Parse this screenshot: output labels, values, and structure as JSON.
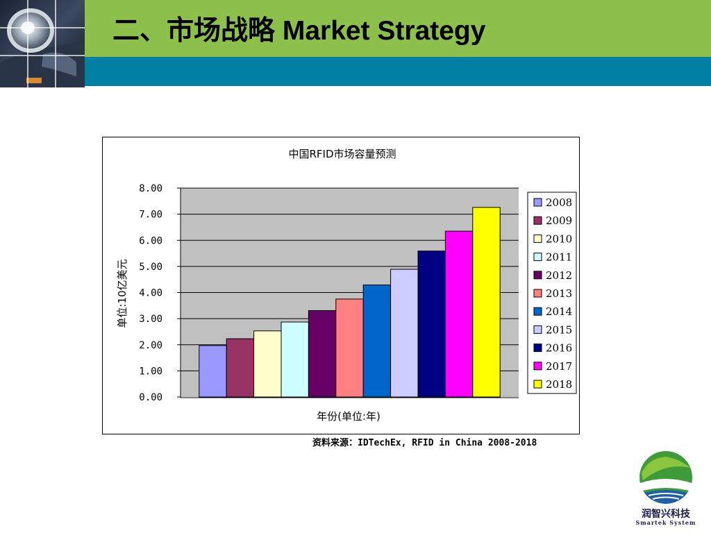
{
  "slide": {
    "title": "二、市场战略 Market Strategy",
    "source_note": "资料来源：IDTechEx, RFID in China 2008-2018"
  },
  "colors": {
    "header_green": "#8dc04a",
    "header_blue": "#0280a4",
    "plot_background": "#c0c0c0"
  },
  "logo": {
    "name_cn": "润智兴科技",
    "name_en": "Smartek System"
  },
  "chart_data": {
    "type": "bar",
    "title": "中国RFID市场容量预测",
    "xlabel": "年份(单位:年)",
    "ylabel": "单位:10亿美元",
    "ylim": [
      0,
      8
    ],
    "ytick_labels": [
      "0.00",
      "1.00",
      "2.00",
      "3.00",
      "4.00",
      "5.00",
      "6.00",
      "7.00",
      "8.00"
    ],
    "grid": true,
    "legend_position": "right",
    "series": [
      {
        "name": "2008",
        "value": 1.97,
        "color": "#9999ff"
      },
      {
        "name": "2009",
        "value": 2.23,
        "color": "#993366"
      },
      {
        "name": "2010",
        "value": 2.53,
        "color": "#ffffcc"
      },
      {
        "name": "2011",
        "value": 2.87,
        "color": "#ccffff"
      },
      {
        "name": "2012",
        "value": 3.31,
        "color": "#660066"
      },
      {
        "name": "2013",
        "value": 3.75,
        "color": "#ff8080"
      },
      {
        "name": "2014",
        "value": 4.29,
        "color": "#0066cc"
      },
      {
        "name": "2015",
        "value": 4.89,
        "color": "#ccccff"
      },
      {
        "name": "2016",
        "value": 5.59,
        "color": "#000080"
      },
      {
        "name": "2017",
        "value": 6.35,
        "color": "#ff00ff"
      },
      {
        "name": "2018",
        "value": 7.26,
        "color": "#ffff00"
      }
    ]
  }
}
